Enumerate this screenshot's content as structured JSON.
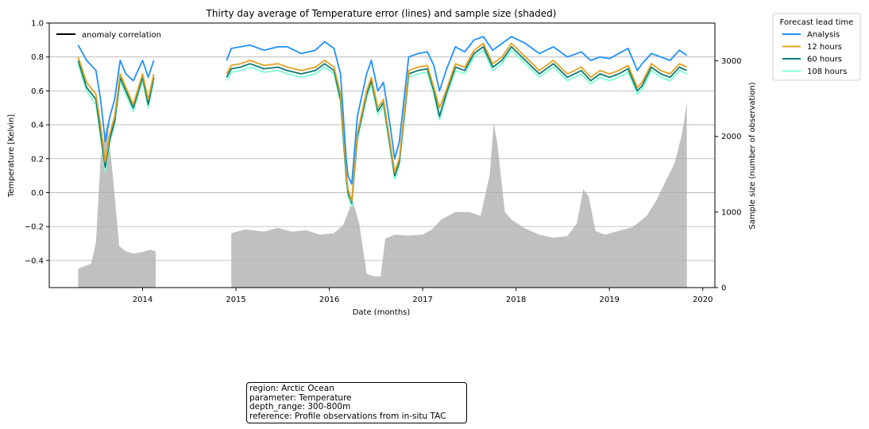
{
  "chart_data": {
    "type": "line",
    "title": "Thirty day average of Temperature error (lines) and sample size (shaded)",
    "xlabel": "Date (months)",
    "ylabel": "Temperature [Kelvin]",
    "ylabel_right": "Sample size (number of observation)",
    "xlim": [
      2013.0,
      2020.13
    ],
    "ylim": [
      -0.56,
      1.0
    ],
    "ylim_right": [
      0,
      3500
    ],
    "x_ticks": [
      2014,
      2015,
      2016,
      2017,
      2018,
      2019,
      2020
    ],
    "x_tick_labels": [
      "2014",
      "2015",
      "2016",
      "2017",
      "2018",
      "2019",
      "2020"
    ],
    "y_ticks": [
      -0.4,
      -0.2,
      0.0,
      0.2,
      0.4,
      0.6,
      0.8,
      1.0
    ],
    "y_tick_labels": [
      "−0.4",
      "−0.2",
      "0.0",
      "0.2",
      "0.4",
      "0.6",
      "0.8",
      "1.0"
    ],
    "y_right_ticks": [
      0,
      1000,
      2000,
      3000
    ],
    "y_right_tick_labels": [
      "0",
      "1000",
      "2000",
      "3000"
    ],
    "grid": "horizontal",
    "inner_legend": {
      "label": "anomaly correlation",
      "placement": "upper-left"
    },
    "legend": {
      "title": "Forecast lead time",
      "placement": "outside-upper-right",
      "entries": [
        "Analysis",
        "12 hours",
        "60 hours",
        "108 hours"
      ]
    },
    "x": [
      2013.31,
      2013.4,
      2013.5,
      2013.55,
      2013.6,
      2013.65,
      2013.7,
      2013.76,
      2013.82,
      2013.9,
      2014.0,
      2014.06,
      2014.12,
      2014.15,
      2014.9,
      2014.95,
      2015.05,
      2015.15,
      2015.3,
      2015.45,
      2015.55,
      2015.7,
      2015.85,
      2015.95,
      2016.05,
      2016.12,
      2016.18,
      2016.2,
      2016.24,
      2016.3,
      2016.4,
      2016.45,
      2016.52,
      2016.58,
      2016.65,
      2016.7,
      2016.75,
      2016.85,
      2016.95,
      2017.05,
      2017.12,
      2017.18,
      2017.25,
      2017.35,
      2017.45,
      2017.55,
      2017.65,
      2017.75,
      2017.85,
      2017.95,
      2018.1,
      2018.25,
      2018.4,
      2018.55,
      2018.7,
      2018.8,
      2018.9,
      2019.0,
      2019.1,
      2019.2,
      2019.3,
      2019.35,
      2019.45,
      2019.55,
      2019.65,
      2019.75,
      2019.83
    ],
    "series": [
      {
        "name": "Analysis",
        "color": "#1e90ff",
        "values": [
          0.87,
          0.78,
          0.72,
          0.55,
          0.3,
          0.45,
          0.55,
          0.78,
          0.7,
          0.66,
          0.78,
          0.68,
          0.78,
          null,
          0.78,
          0.85,
          0.86,
          0.87,
          0.84,
          0.86,
          0.86,
          0.82,
          0.84,
          0.89,
          0.85,
          0.7,
          0.2,
          0.1,
          0.05,
          0.45,
          0.7,
          0.78,
          0.6,
          0.65,
          0.4,
          0.2,
          0.3,
          0.8,
          0.82,
          0.83,
          0.75,
          0.6,
          0.72,
          0.86,
          0.83,
          0.9,
          0.92,
          0.84,
          0.88,
          0.92,
          0.88,
          0.82,
          0.86,
          0.8,
          0.83,
          0.78,
          0.8,
          0.79,
          0.82,
          0.85,
          0.72,
          0.76,
          0.82,
          0.8,
          0.78,
          0.84,
          0.81
        ]
      },
      {
        "name": "12 hours",
        "color": "#e6a020",
        "values": [
          0.8,
          0.65,
          0.58,
          0.4,
          0.18,
          0.35,
          0.45,
          0.7,
          0.62,
          0.52,
          0.7,
          0.55,
          0.7,
          null,
          0.7,
          0.75,
          0.76,
          0.78,
          0.75,
          0.76,
          0.74,
          0.72,
          0.74,
          0.78,
          0.74,
          0.58,
          0.12,
          0.02,
          -0.05,
          0.35,
          0.6,
          0.68,
          0.5,
          0.55,
          0.3,
          0.12,
          0.2,
          0.72,
          0.74,
          0.75,
          0.62,
          0.5,
          0.6,
          0.76,
          0.74,
          0.84,
          0.88,
          0.76,
          0.8,
          0.88,
          0.8,
          0.72,
          0.78,
          0.7,
          0.74,
          0.68,
          0.72,
          0.7,
          0.72,
          0.75,
          0.62,
          0.65,
          0.76,
          0.72,
          0.7,
          0.76,
          0.74
        ]
      },
      {
        "name": "60 hours",
        "color": "#0f7a72",
        "values": [
          0.78,
          0.62,
          0.55,
          0.35,
          0.15,
          0.32,
          0.42,
          0.68,
          0.6,
          0.5,
          0.68,
          0.52,
          0.68,
          null,
          0.68,
          0.73,
          0.74,
          0.76,
          0.73,
          0.74,
          0.72,
          0.7,
          0.72,
          0.76,
          0.72,
          0.55,
          0.1,
          0.0,
          -0.06,
          0.33,
          0.58,
          0.66,
          0.48,
          0.53,
          0.28,
          0.1,
          0.18,
          0.7,
          0.72,
          0.73,
          0.6,
          0.45,
          0.58,
          0.74,
          0.72,
          0.82,
          0.86,
          0.74,
          0.78,
          0.86,
          0.78,
          0.7,
          0.76,
          0.68,
          0.72,
          0.66,
          0.7,
          0.68,
          0.7,
          0.73,
          0.6,
          0.63,
          0.74,
          0.7,
          0.68,
          0.74,
          0.72
        ]
      },
      {
        "name": "108 hours",
        "color": "#7fffd4",
        "values": [
          0.76,
          0.6,
          0.52,
          0.33,
          0.12,
          0.3,
          0.4,
          0.66,
          0.58,
          0.48,
          0.66,
          0.5,
          0.66,
          null,
          0.66,
          0.71,
          0.72,
          0.74,
          0.71,
          0.72,
          0.7,
          0.68,
          0.7,
          0.74,
          0.7,
          0.53,
          0.08,
          -0.02,
          -0.08,
          0.31,
          0.56,
          0.64,
          0.46,
          0.51,
          0.26,
          0.08,
          0.16,
          0.68,
          0.7,
          0.71,
          0.58,
          0.43,
          0.56,
          0.72,
          0.7,
          0.8,
          0.84,
          0.72,
          0.76,
          0.84,
          0.76,
          0.68,
          0.74,
          0.66,
          0.7,
          0.64,
          0.68,
          0.66,
          0.68,
          0.71,
          0.58,
          0.61,
          0.72,
          0.68,
          0.66,
          0.72,
          0.7
        ]
      }
    ],
    "sample_size": {
      "color": "#c0c0c0",
      "x": [
        2013.31,
        2013.45,
        2013.5,
        2013.55,
        2013.62,
        2013.68,
        2013.75,
        2013.82,
        2013.9,
        2014.0,
        2014.08,
        2014.14,
        2014.15,
        2014.9,
        2014.95,
        2015.1,
        2015.3,
        2015.45,
        2015.6,
        2015.75,
        2015.9,
        2016.05,
        2016.15,
        2016.25,
        2016.32,
        2016.4,
        2016.48,
        2016.55,
        2016.6,
        2016.7,
        2016.85,
        2017.0,
        2017.1,
        2017.2,
        2017.35,
        2017.5,
        2017.62,
        2017.72,
        2017.76,
        2017.8,
        2017.88,
        2017.95,
        2018.1,
        2018.25,
        2018.4,
        2018.55,
        2018.65,
        2018.72,
        2018.78,
        2018.85,
        2018.95,
        2019.1,
        2019.25,
        2019.4,
        2019.5,
        2019.6,
        2019.7,
        2019.78,
        2019.83
      ],
      "values": [
        250,
        320,
        600,
        1700,
        2200,
        1500,
        550,
        480,
        450,
        470,
        500,
        480,
        0,
        0,
        720,
        770,
        740,
        790,
        740,
        760,
        700,
        720,
        830,
        1150,
        850,
        180,
        150,
        150,
        650,
        700,
        690,
        700,
        770,
        900,
        1000,
        1000,
        950,
        1500,
        2180,
        1900,
        1000,
        900,
        780,
        700,
        660,
        680,
        850,
        1300,
        1200,
        750,
        700,
        750,
        800,
        950,
        1150,
        1400,
        1650,
        2050,
        2450
      ]
    }
  },
  "annotation": {
    "lines": [
      "region: Arctic Ocean",
      "parameter: Temperature",
      "depth_range: 300-800m",
      "reference: Profile observations from in-situ TAC"
    ]
  }
}
